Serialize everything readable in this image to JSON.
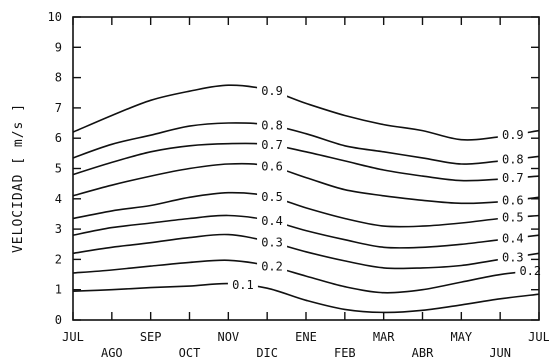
{
  "chart_data": {
    "type": "line",
    "ylabel": "VELOCIDAD [ m/s ]",
    "xlabel": "",
    "ylim": [
      0,
      10
    ],
    "yticks": [
      "0",
      "1",
      "2",
      "3",
      "4",
      "5",
      "6",
      "7",
      "8",
      "9",
      "10"
    ],
    "x_months_upper": [
      "JUL",
      "SEP",
      "NOV",
      "ENE",
      "MAR",
      "MAY",
      "JUL"
    ],
    "x_months_lower": [
      "AGO",
      "OCT",
      "DIC",
      "FEB",
      "ABR",
      "JUN"
    ],
    "x_positions": [
      0,
      1,
      2,
      3,
      4,
      5,
      6,
      7,
      8,
      9,
      10,
      11,
      12
    ],
    "grid": false,
    "series": [
      {
        "name": "0.1",
        "values": [
          0.95,
          1.0,
          1.07,
          1.12,
          1.2,
          1.05,
          0.65,
          0.35,
          0.25,
          0.32,
          0.5,
          0.7,
          0.85
        ],
        "labels": [
          {
            "text": "0.1",
            "x": 4.35
          }
        ]
      },
      {
        "name": "0.2",
        "values": [
          1.55,
          1.65,
          1.78,
          1.9,
          1.97,
          1.8,
          1.45,
          1.1,
          0.9,
          1.0,
          1.25,
          1.5,
          1.65
        ],
        "labels": [
          {
            "text": "0.2",
            "x": 5.1
          },
          {
            "text": "0.2",
            "x": 11.75
          }
        ]
      },
      {
        "name": "0.3",
        "values": [
          2.2,
          2.4,
          2.55,
          2.72,
          2.82,
          2.6,
          2.25,
          1.95,
          1.72,
          1.72,
          1.8,
          2.0,
          2.2
        ],
        "labels": [
          {
            "text": "0.3",
            "x": 5.1
          },
          {
            "text": "0.3",
            "x": 11.3
          }
        ]
      },
      {
        "name": "0.4",
        "values": [
          2.8,
          3.05,
          3.2,
          3.35,
          3.45,
          3.3,
          2.95,
          2.65,
          2.4,
          2.4,
          2.5,
          2.65,
          2.8
        ],
        "labels": [
          {
            "text": "0.4",
            "x": 5.1
          },
          {
            "text": "0.4",
            "x": 11.3
          }
        ]
      },
      {
        "name": "0.5",
        "values": [
          3.35,
          3.6,
          3.78,
          4.05,
          4.2,
          4.1,
          3.7,
          3.35,
          3.1,
          3.1,
          3.2,
          3.35,
          3.45
        ],
        "labels": [
          {
            "text": "0.5",
            "x": 5.1
          },
          {
            "text": "0.5",
            "x": 11.3
          }
        ]
      },
      {
        "name": "0.6",
        "values": [
          4.1,
          4.45,
          4.75,
          5.0,
          5.15,
          5.1,
          4.7,
          4.3,
          4.1,
          3.95,
          3.85,
          3.9,
          4.05
        ],
        "labels": [
          {
            "text": "0.6",
            "x": 5.1
          },
          {
            "text": "0.6",
            "x": 11.3
          }
        ]
      },
      {
        "name": "0.7",
        "values": [
          4.8,
          5.2,
          5.55,
          5.75,
          5.82,
          5.8,
          5.55,
          5.25,
          4.95,
          4.75,
          4.6,
          4.65,
          4.75
        ],
        "labels": [
          {
            "text": "0.7",
            "x": 5.1
          },
          {
            "text": "0.7",
            "x": 11.3
          }
        ]
      },
      {
        "name": "0.8",
        "values": [
          5.35,
          5.8,
          6.1,
          6.4,
          6.5,
          6.45,
          6.15,
          5.75,
          5.55,
          5.35,
          5.15,
          5.25,
          5.4
        ],
        "labels": [
          {
            "text": "0.8",
            "x": 5.1
          },
          {
            "text": "0.8",
            "x": 11.3
          }
        ]
      },
      {
        "name": "0.9",
        "values": [
          6.2,
          6.75,
          7.25,
          7.55,
          7.75,
          7.6,
          7.15,
          6.75,
          6.45,
          6.25,
          5.95,
          6.05,
          6.25
        ],
        "labels": [
          {
            "text": "0.9",
            "x": 5.1
          },
          {
            "text": "0.9",
            "x": 11.3
          }
        ]
      }
    ]
  }
}
